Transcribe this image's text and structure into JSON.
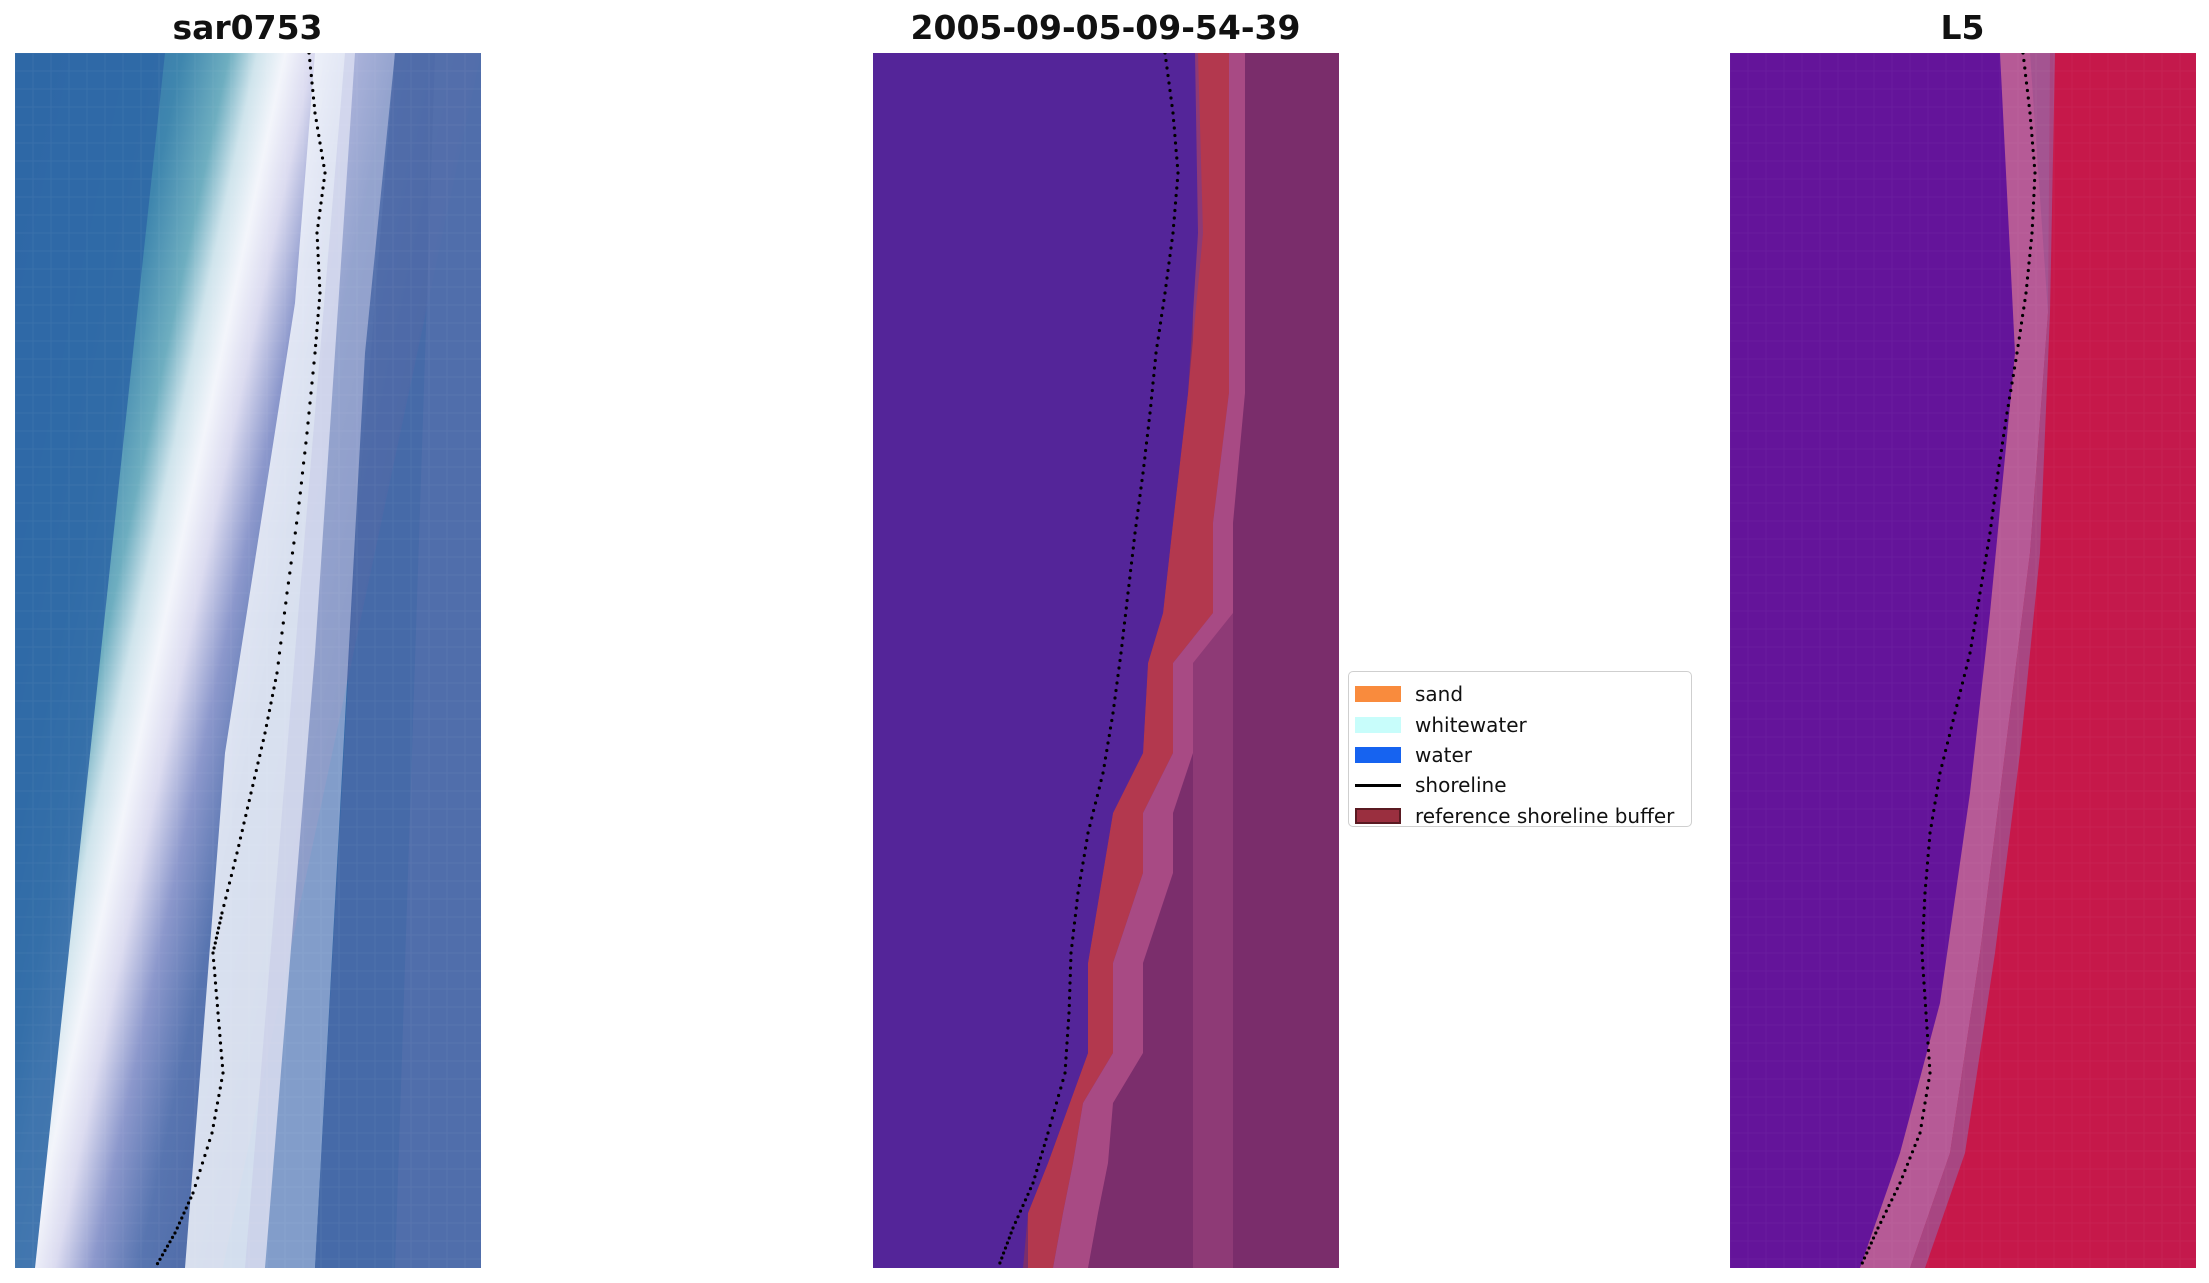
{
  "panels": {
    "left": {
      "title": "sar0753"
    },
    "middle": {
      "title": "2005-09-05-09-54-39"
    },
    "right": {
      "title": "L5"
    }
  },
  "legend": {
    "items": [
      {
        "label": "sand",
        "type": "patch",
        "color": "#f98b3d"
      },
      {
        "label": "whitewater",
        "type": "patch",
        "color": "#c8fdfb"
      },
      {
        "label": "water",
        "type": "patch",
        "color": "#1663f0"
      },
      {
        "label": "shoreline",
        "type": "line",
        "color": "#000000"
      },
      {
        "label": "reference shoreline buffer",
        "type": "patch",
        "color": "#9a2f3f",
        "edge": "#5a1a22"
      }
    ]
  },
  "colors": {
    "rgb_water_deep": "#2c66a7",
    "rgb_water_shallow": "#3a82ad",
    "rgb_whitewater": "#f4f6fb",
    "rgb_beach": "#4d6aa6",
    "class_water": "#542599",
    "class_buffer": "#b3384e",
    "class_land": "#7e2e6d",
    "mndwi_water": "#62139c",
    "mndwi_land": "#c51745",
    "shoreline": "#000000"
  }
}
